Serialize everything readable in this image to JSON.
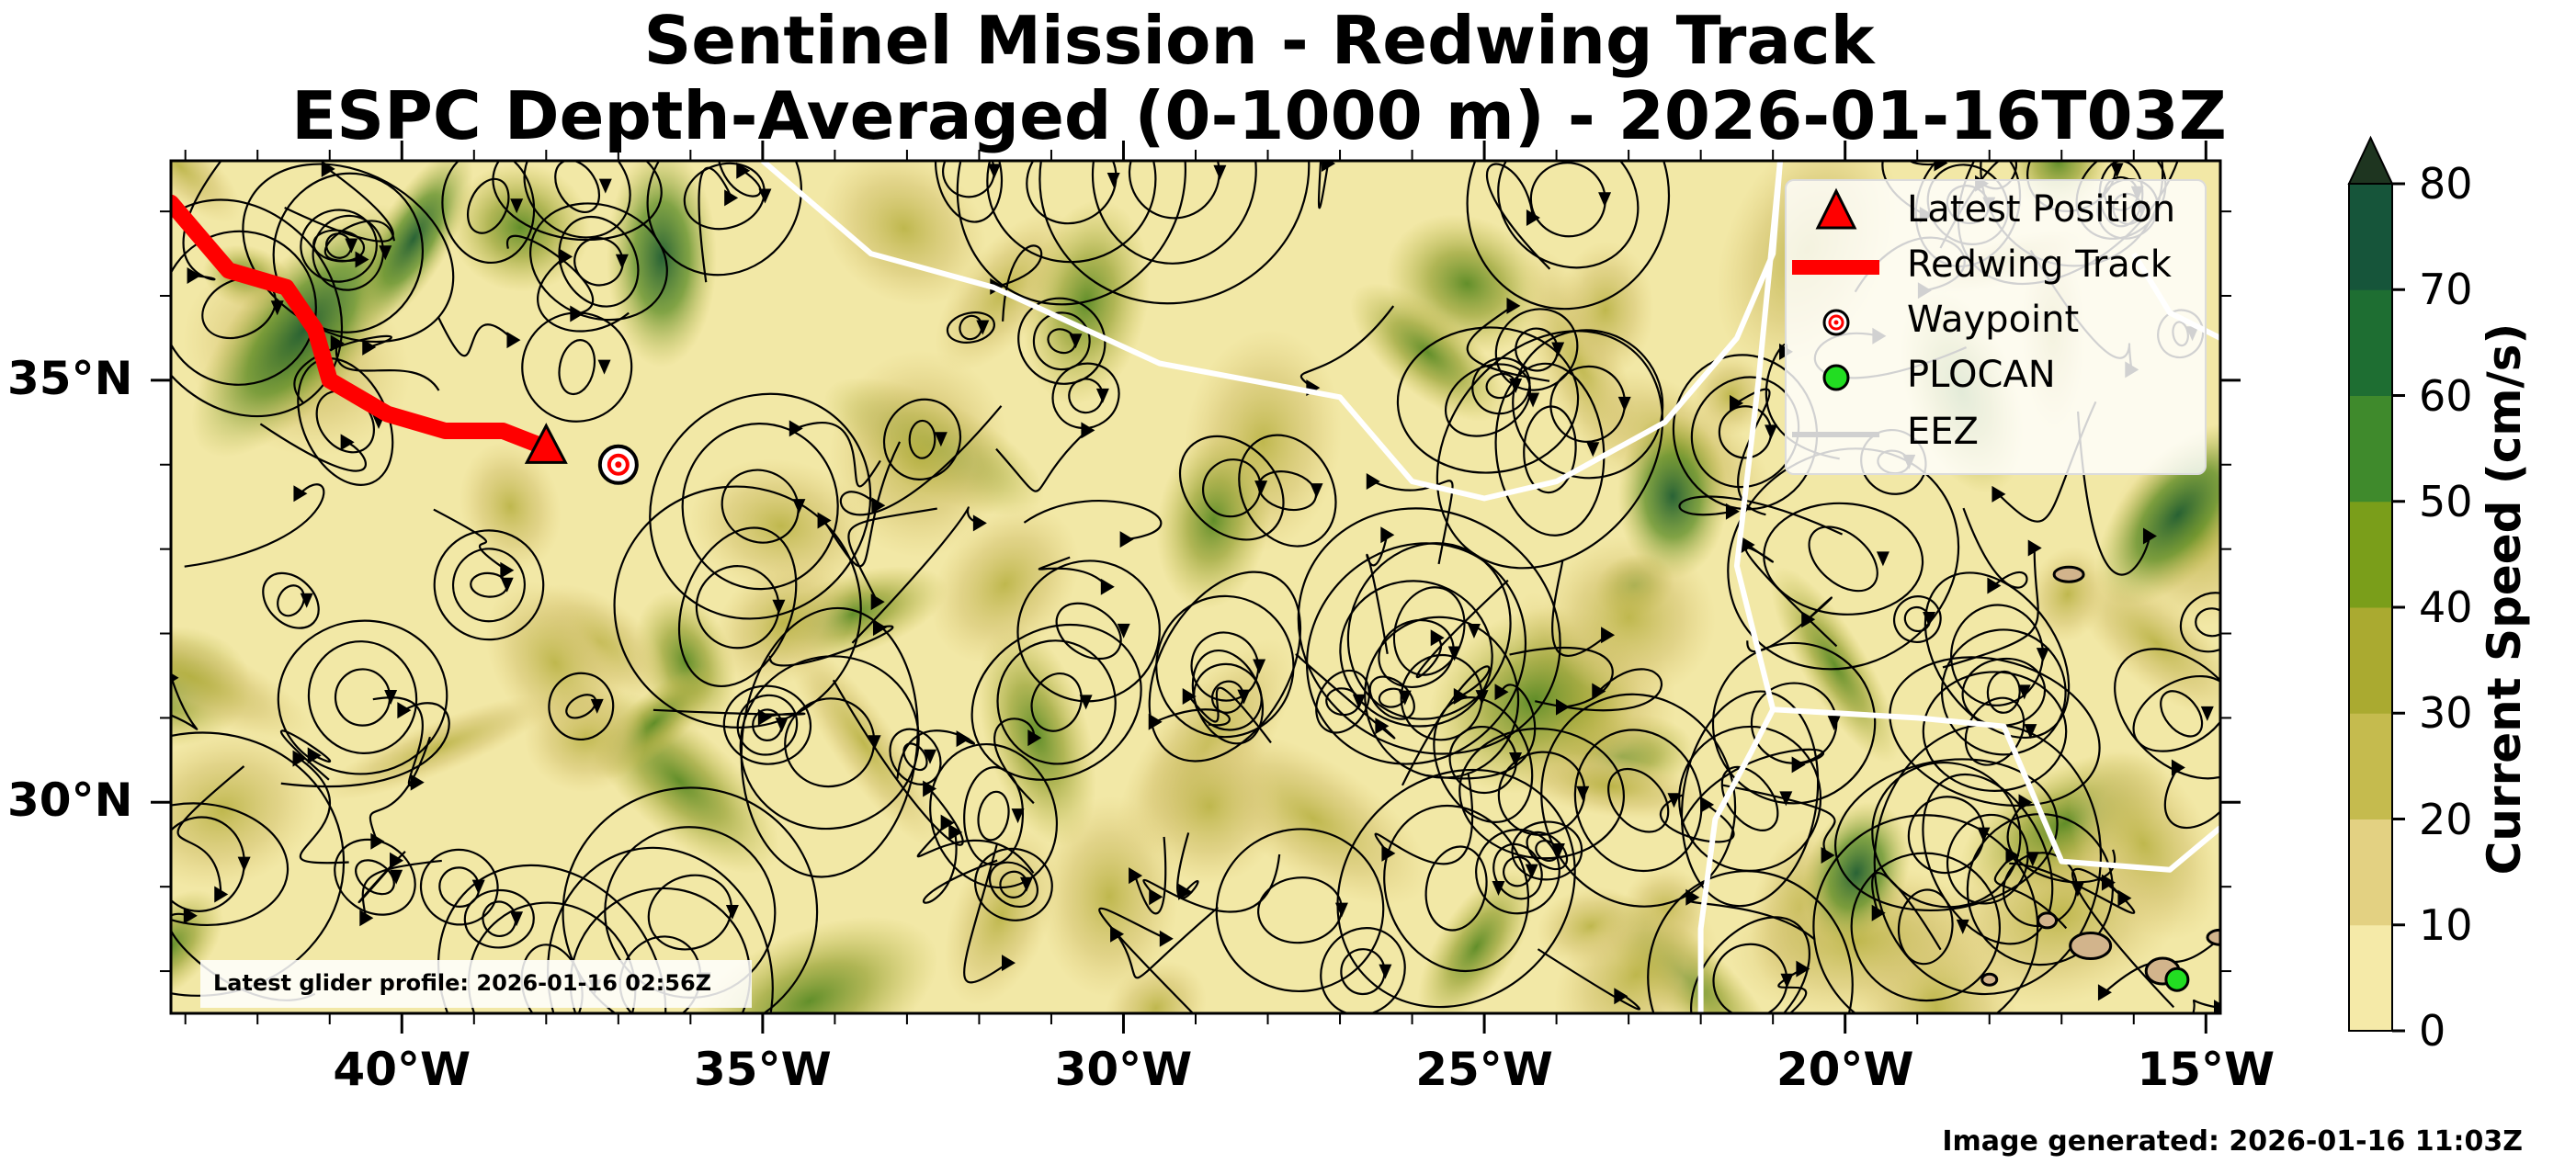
{
  "title_line1": "Sentinel Mission - Redwing Track",
  "title_line2": "ESPC Depth-Averaged (0-1000 m) - 2026-01-16T03Z",
  "map": {
    "lon_range": [
      -43.2,
      -14.8
    ],
    "lat_range": [
      27.5,
      37.6
    ],
    "lon_ticks": [
      {
        "value": -40,
        "label": "40°W"
      },
      {
        "value": -35,
        "label": "35°W"
      },
      {
        "value": -30,
        "label": "30°W"
      },
      {
        "value": -25,
        "label": "25°W"
      },
      {
        "value": -20,
        "label": "20°W"
      },
      {
        "value": -15,
        "label": "15°W"
      }
    ],
    "lat_ticks": [
      {
        "value": 35,
        "label": "35°N"
      },
      {
        "value": 30,
        "label": "30°N"
      }
    ],
    "background_color": "#f2e8a6",
    "track_color": "#ff0000",
    "eez_color": "#ffffff",
    "land_color": "#d2b48c"
  },
  "track": {
    "name": "Redwing Track",
    "points": [
      [
        -43.2,
        37.1
      ],
      [
        -42.4,
        36.3
      ],
      [
        -41.6,
        36.1
      ],
      [
        -41.2,
        35.6
      ],
      [
        -41.0,
        35.0
      ],
      [
        -40.2,
        34.6
      ],
      [
        -39.4,
        34.4
      ],
      [
        -38.6,
        34.4
      ],
      [
        -38.0,
        34.2
      ]
    ]
  },
  "latest_position": {
    "label": "Latest Position",
    "lon": -38.0,
    "lat": 34.2
  },
  "waypoint": {
    "label": "Waypoint",
    "lon": -37.0,
    "lat": 34.0
  },
  "plocan": {
    "label": "PLOCAN",
    "lon": -15.4,
    "lat": 27.9
  },
  "eez": {
    "label": "EEZ",
    "lines": [
      [
        [
          -35.0,
          37.6
        ],
        [
          -33.5,
          36.5
        ],
        [
          -31.8,
          36.1
        ],
        [
          -29.5,
          35.2
        ],
        [
          -27.0,
          34.8
        ],
        [
          -26.0,
          33.8
        ],
        [
          -25.0,
          33.6
        ],
        [
          -24.0,
          33.8
        ],
        [
          -22.5,
          34.5
        ],
        [
          -21.5,
          35.5
        ],
        [
          -21.0,
          36.5
        ],
        [
          -20.9,
          37.6
        ]
      ],
      [
        [
          -20.9,
          37.6
        ],
        [
          -21.2,
          35.0
        ],
        [
          -21.5,
          32.8
        ],
        [
          -21.0,
          31.1
        ],
        [
          -21.3,
          30.6
        ],
        [
          -21.8,
          29.8
        ],
        [
          -22.0,
          28.5
        ],
        [
          -22.0,
          27.5
        ]
      ],
      [
        [
          -21.0,
          31.1
        ],
        [
          -19.0,
          31.0
        ],
        [
          -17.8,
          30.9
        ],
        [
          -17.0,
          29.3
        ],
        [
          -15.5,
          29.2
        ],
        [
          -14.8,
          29.7
        ]
      ],
      [
        [
          -14.8,
          35.5
        ],
        [
          -15.5,
          35.8
        ],
        [
          -16.0,
          36.5
        ]
      ]
    ]
  },
  "legend": {
    "position": "upper right",
    "items": [
      {
        "label": "Latest Position"
      },
      {
        "label": "Redwing Track"
      },
      {
        "label": "Waypoint"
      },
      {
        "label": "PLOCAN"
      },
      {
        "label": "EEZ"
      }
    ]
  },
  "colorbar": {
    "label": "Current Speed (cm/s)",
    "ticks": [
      "0",
      "10",
      "20",
      "30",
      "40",
      "50",
      "60",
      "70",
      "80"
    ],
    "colors": [
      "#f5eaa8",
      "#e3d182",
      "#c5bb4e",
      "#aaaa30",
      "#7a9e1a",
      "#3f8a2c",
      "#1e6e32",
      "#16553a",
      "#1e3520"
    ],
    "extend": "max"
  },
  "profile_note": "Latest glider profile: 2026-01-16 02:56Z",
  "footer": "Image generated: 2026-01-16 11:03Z"
}
